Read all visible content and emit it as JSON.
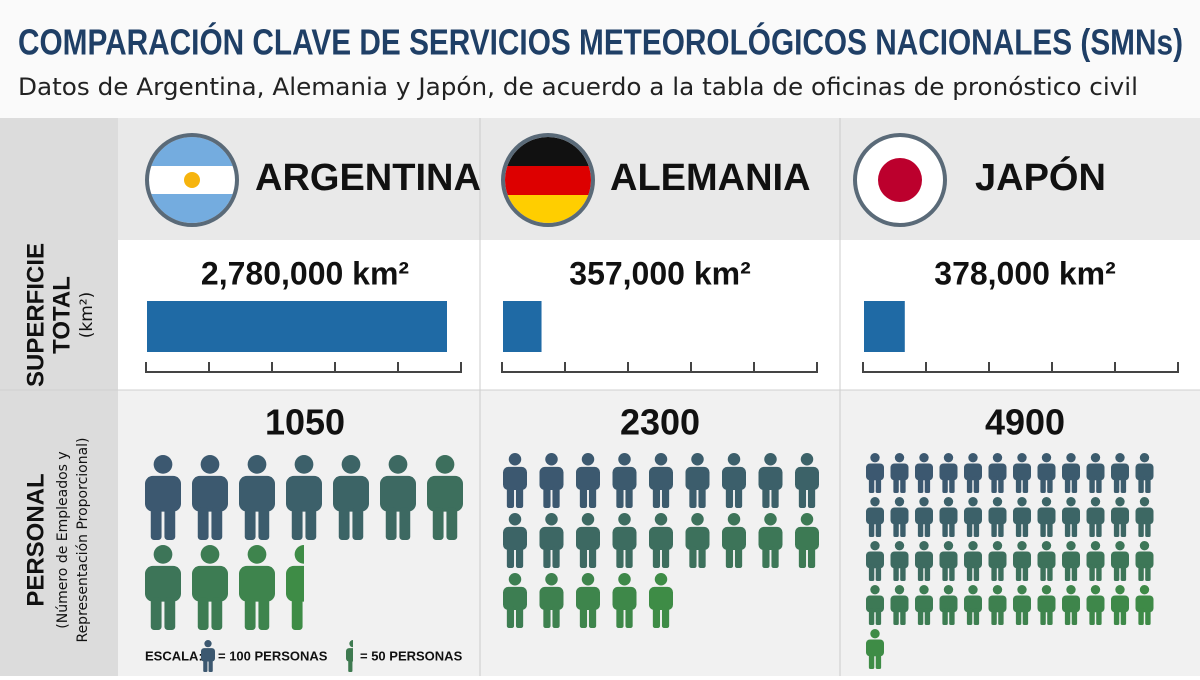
{
  "header": {
    "title": "COMPARACIÓN CLAVE DE SERVICIOS METEOROLÓGICOS NACIONALES (SMNs)",
    "subtitle": "Datos de Argentina, Alemania y Japón, de acuerdo a la tabla de oficinas de pronóstico civil"
  },
  "row_labels": {
    "area": [
      "SUPERFICIE",
      "TOTAL",
      "(km²)"
    ],
    "staff": [
      "PERSONAL",
      "(Número de Empleados y",
      "Representación Proporcional)"
    ]
  },
  "countries": [
    {
      "name": "ARGENTINA",
      "area": {
        "value": 2780000,
        "label": "2,780,000 km²"
      },
      "staff": 1050
    },
    {
      "name": "ALEMANIA",
      "area": {
        "value": 357000,
        "label": "357,000 km²"
      },
      "staff": 2300
    },
    {
      "name": "JAPÓN",
      "area": {
        "value": 378000,
        "label": "378,000 km²"
      },
      "staff": 4900
    }
  ],
  "scale": {
    "title": "ESCALA:",
    "full": "= 100 PERSONAS",
    "half": "= 50 PERSONAS"
  },
  "bar_color": "#1f6aa5"
}
